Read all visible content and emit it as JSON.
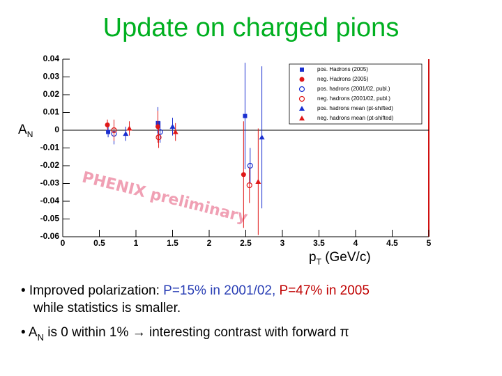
{
  "slide": {
    "title": "Update on charged pions",
    "bullet_lines": [
      [
        {
          "text": "• Improved polarization:  ",
          "color": "#000000"
        },
        {
          "text": "P=15% in 2001/02, ",
          "color": "#2a3fb5"
        },
        {
          "text": "P=47% in 2005",
          "color": "#c00000"
        }
      ],
      [
        {
          "text": "while statistics is smaller.",
          "color": "#000000"
        }
      ],
      [
        {
          "text": "• A",
          "color": "#000000"
        },
        {
          "text": "N",
          "color": "#000000",
          "sub": true
        },
        {
          "text": " is 0 within 1% ",
          "color": "#000000"
        },
        {
          "text": "→",
          "color": "#000000"
        },
        {
          "text": " interesting contrast with forward π",
          "color": "#000000"
        }
      ]
    ]
  },
  "chart_data": {
    "type": "scatter",
    "ylabel": [
      {
        "text": "A"
      },
      {
        "text": "N",
        "sub": true
      }
    ],
    "xlabel": [
      {
        "text": "p"
      },
      {
        "text": "T",
        "sub": true
      },
      {
        "text": " (GeV/c)"
      }
    ],
    "annotations": [
      "PHENIX preliminary"
    ],
    "xlim": [
      0,
      5
    ],
    "xticks": [
      0,
      0.5,
      1,
      1.5,
      2,
      2.5,
      3,
      3.5,
      4,
      4.5,
      5
    ],
    "ylim": [
      -0.06,
      0.04
    ],
    "yticks": [
      -0.06,
      -0.05,
      -0.04,
      -0.03,
      -0.02,
      -0.01,
      0,
      0.01,
      0.02,
      0.03,
      0.04
    ],
    "legend": "upper right",
    "series": [
      {
        "name": "pos. Hadrons (2005)",
        "color": "#1a2fd0",
        "marker": "square",
        "x": [
          0.62,
          1.3,
          2.49
        ],
        "values": [
          -0.001,
          0.004,
          0.008
        ],
        "errors": [
          0.003,
          0.009,
          0.03
        ]
      },
      {
        "name": "neg. Hadrons (2005)",
        "color": "#e01818",
        "marker": "circle",
        "x": [
          0.61,
          1.3,
          2.47
        ],
        "values": [
          0.003,
          0.002,
          -0.025
        ],
        "errors": [
          0.003,
          0.009,
          0.03
        ]
      },
      {
        "name": "pos. hadrons (2001/02, publ.)",
        "color": "#1a2fd0",
        "marker": "open-circle",
        "x": [
          0.7,
          1.33,
          2.56
        ],
        "values": [
          -0.002,
          -0.001,
          -0.02
        ],
        "errors": [
          0.006,
          0.006,
          0.01
        ]
      },
      {
        "name": "neg. hadrons (2001/02, publ.)",
        "color": "#e01818",
        "marker": "open-circle",
        "x": [
          0.7,
          1.31,
          2.55
        ],
        "values": [
          0,
          -0.004,
          -0.031
        ],
        "errors": [
          0.006,
          0.006,
          0.01
        ]
      },
      {
        "name": "pos. hadrons mean (pt-shifted)",
        "color": "#1a2fd0",
        "marker": "triangle",
        "x": [
          0.86,
          1.5,
          2.72
        ],
        "values": [
          -0.002,
          0.002,
          -0.004
        ],
        "errors": [
          0.004,
          0.005,
          0.04
        ]
      },
      {
        "name": "neg. hadrons mean (pt-shifted)",
        "color": "#e01818",
        "marker": "triangle",
        "x": [
          0.91,
          1.54,
          2.67
        ],
        "values": [
          0.001,
          -0.001,
          -0.029
        ],
        "errors": [
          0.004,
          0.005,
          0.03
        ]
      }
    ]
  }
}
